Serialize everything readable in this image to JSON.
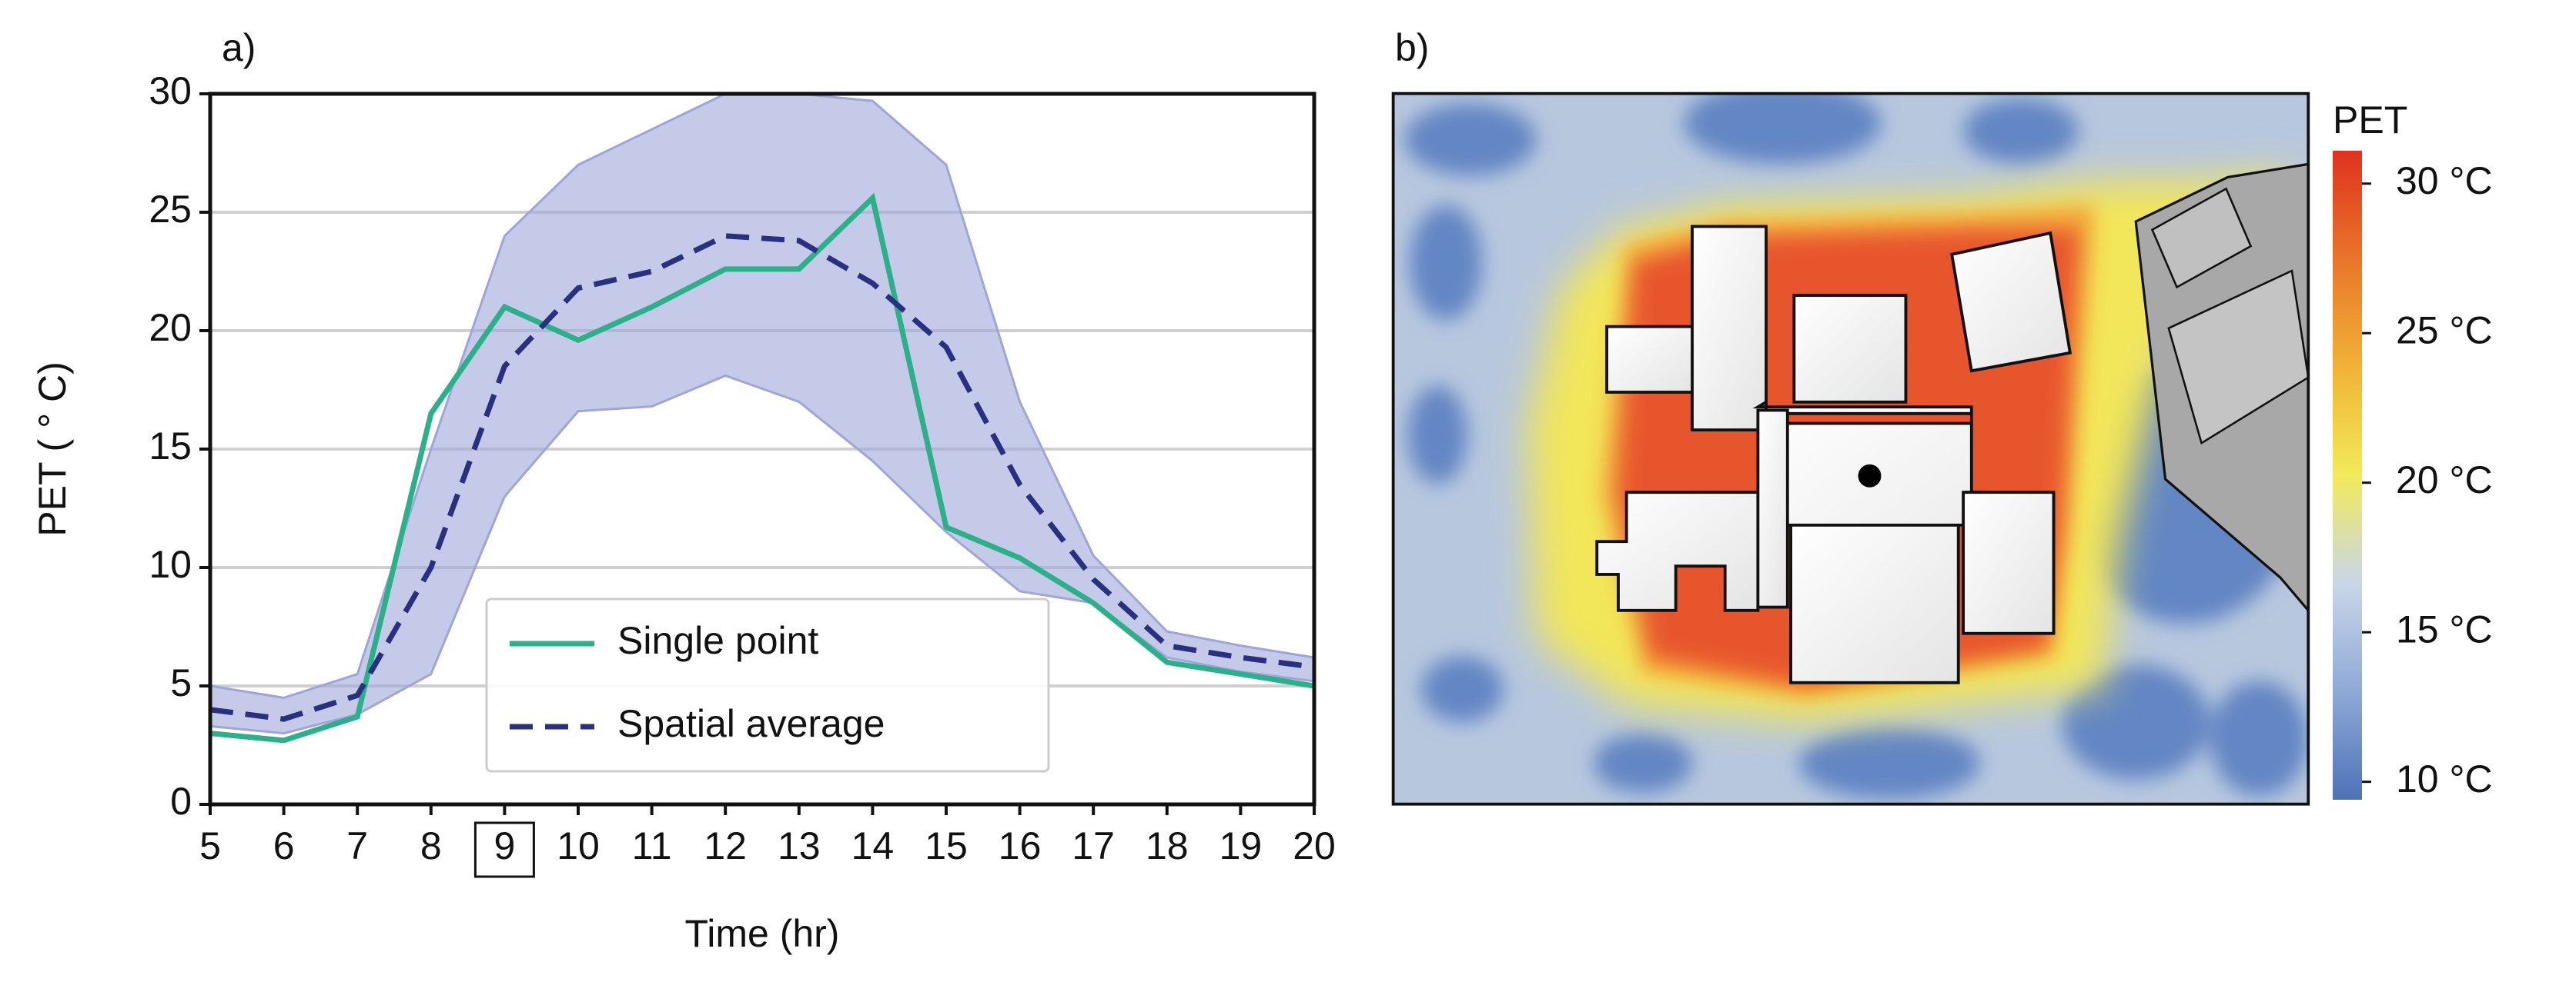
{
  "chart_data": [
    {
      "type": "line",
      "title": "a)",
      "xlabel": "Time (hr)",
      "ylabel": "PET ( ° C)",
      "x": [
        5,
        6,
        7,
        8,
        9,
        10,
        11,
        12,
        13,
        14,
        15,
        16,
        17,
        18,
        19,
        20
      ],
      "series": [
        {
          "name": "Single point",
          "color": "#2bb08a",
          "dash": false,
          "values": [
            3.0,
            2.7,
            3.7,
            16.5,
            21.0,
            19.6,
            21.0,
            22.6,
            22.6,
            25.6,
            11.7,
            10.4,
            8.5,
            6.0,
            5.5,
            5.0
          ]
        },
        {
          "name": "Spatial average",
          "color": "#2a2f80",
          "dash": true,
          "values": [
            4.0,
            3.6,
            4.6,
            10.0,
            18.5,
            21.8,
            22.5,
            24.0,
            23.8,
            22.0,
            19.3,
            13.5,
            9.5,
            6.7,
            6.2,
            5.8
          ]
        }
      ],
      "band": {
        "color": "#9ea6d8",
        "lower": [
          3.3,
          3.0,
          3.8,
          5.5,
          13.0,
          16.6,
          16.8,
          18.1,
          17.0,
          14.5,
          11.5,
          9.0,
          8.5,
          6.2,
          5.6,
          5.2
        ],
        "upper": [
          5.0,
          4.5,
          5.5,
          15.0,
          24.0,
          27.0,
          28.5,
          30.0,
          30.0,
          29.7,
          27.0,
          17.0,
          10.5,
          7.3,
          6.7,
          6.2
        ]
      },
      "xlim": [
        5,
        20
      ],
      "xticks": [
        5,
        6,
        7,
        8,
        9,
        10,
        11,
        12,
        13,
        14,
        15,
        16,
        17,
        18,
        19,
        20
      ],
      "ylim": [
        0,
        30
      ],
      "yticks": [
        0,
        5,
        10,
        15,
        20,
        25,
        30
      ],
      "highlighted_xtick": 9,
      "grid": true,
      "legend": "lower center"
    },
    {
      "type": "heatmap",
      "title": "b)",
      "colorbar_title": "PET",
      "clim": [
        9.4,
        31.1
      ],
      "cticks": [
        {
          "value": 10,
          "label": "10 °C"
        },
        {
          "value": 15,
          "label": "15 °C"
        },
        {
          "value": 20,
          "label": "20 °C"
        },
        {
          "value": 25,
          "label": "25 °C"
        },
        {
          "value": 30,
          "label": "30 °C"
        }
      ],
      "colormap": [
        "#4e72b8",
        "#8fa9d6",
        "#c9d6e8",
        "#f2ea5a",
        "#f1b236",
        "#e9752a",
        "#e0321f"
      ]
    }
  ]
}
